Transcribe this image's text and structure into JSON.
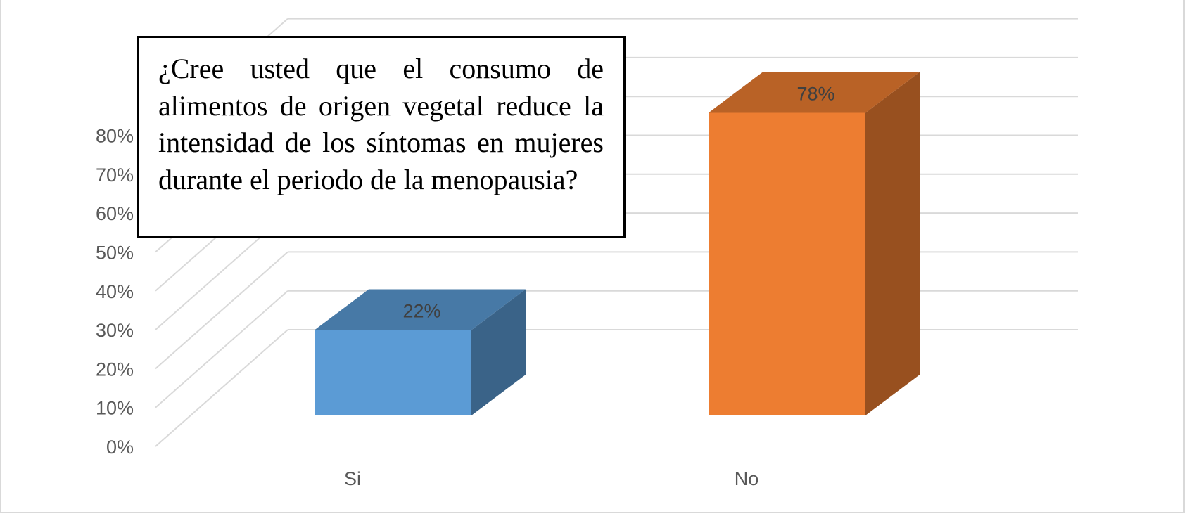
{
  "chart_data": {
    "type": "bar",
    "style": "3d-column",
    "title": "¿Cree usted que el consumo de alimentos de origen vegetal reduce la intensidad de los síntomas en mujeres durante el periodo de la menopausia?",
    "categories": [
      "Si",
      "No"
    ],
    "values": [
      22,
      78
    ],
    "data_labels": [
      "22%",
      "78%"
    ],
    "colors": [
      "#5B9BD5",
      "#ED7D31"
    ],
    "ylim": [
      0,
      80
    ],
    "y_ticks": [
      "0%",
      "10%",
      "20%",
      "30%",
      "40%",
      "50%",
      "60%",
      "70%",
      "80%"
    ],
    "xlabel": "",
    "ylabel": "",
    "grid": true
  }
}
